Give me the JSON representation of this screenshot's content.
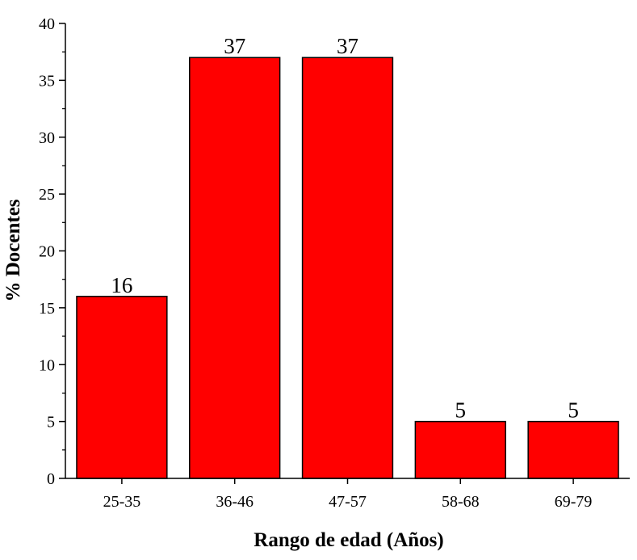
{
  "chart_data": {
    "type": "bar",
    "categories": [
      "25-35",
      "36-46",
      "47-57",
      "58-68",
      "69-79"
    ],
    "values": [
      16,
      37,
      37,
      5,
      5
    ],
    "data_labels": [
      "16",
      "37",
      "37",
      "5",
      "5"
    ],
    "title": "",
    "xlabel": "Rango de edad (Años)",
    "ylabel": "% Docentes",
    "ylim": [
      0,
      40
    ],
    "yticks": [
      0,
      5,
      10,
      15,
      20,
      25,
      30,
      35,
      40
    ],
    "yminor_step": 2.5,
    "grid": false,
    "legend": "none",
    "colors": {
      "bar_fill": "#ff0000",
      "bar_stroke": "#000000",
      "axis": "#000000"
    }
  }
}
